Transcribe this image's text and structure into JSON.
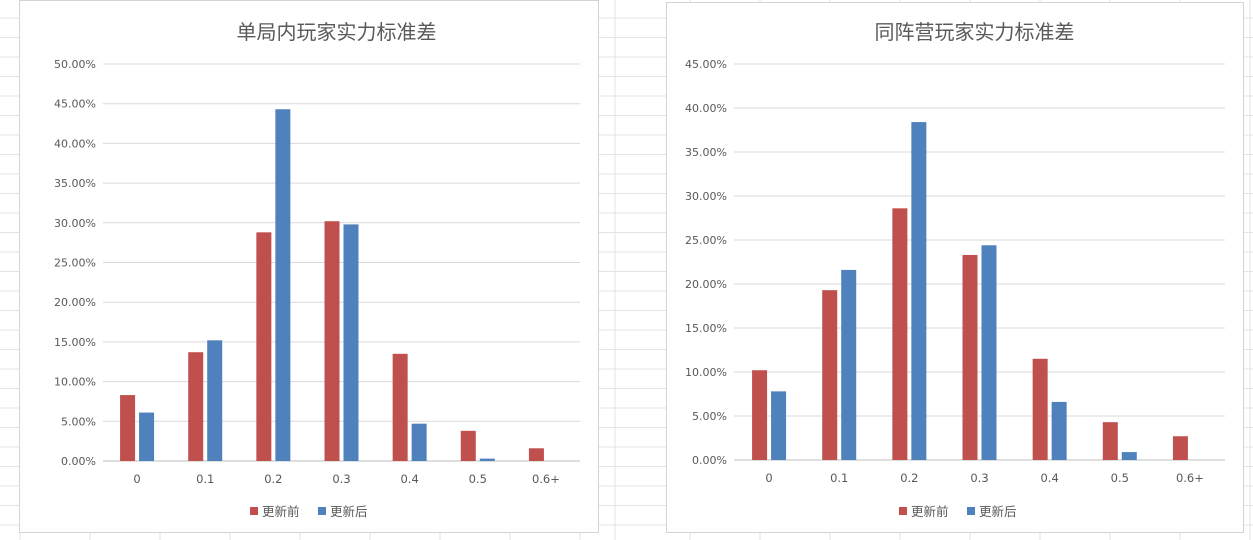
{
  "chart_data": [
    {
      "type": "bar",
      "title": "单局内玩家实力标准差",
      "categories": [
        "0",
        "0.1",
        "0.2",
        "0.3",
        "0.4",
        "0.5",
        "0.6+"
      ],
      "series": [
        {
          "name": "更新前",
          "color": "#c0504d",
          "values": [
            8.3,
            13.7,
            28.8,
            30.2,
            13.5,
            3.8,
            1.6
          ]
        },
        {
          "name": "更新后",
          "color": "#4f81bd",
          "values": [
            6.1,
            15.2,
            44.3,
            29.8,
            4.7,
            0.3,
            0.0
          ]
        }
      ],
      "yticks": [
        "0.00%",
        "5.00%",
        "10.00%",
        "15.00%",
        "20.00%",
        "25.00%",
        "30.00%",
        "35.00%",
        "40.00%",
        "45.00%",
        "50.00%"
      ],
      "ylim": [
        0,
        50
      ],
      "ylabel_format": "percent",
      "grid": true,
      "legend": "bottom-center"
    },
    {
      "type": "bar",
      "title": "同阵营玩家实力标准差",
      "categories": [
        "0",
        "0.1",
        "0.2",
        "0.3",
        "0.4",
        "0.5",
        "0.6+"
      ],
      "series": [
        {
          "name": "更新前",
          "color": "#c0504d",
          "values": [
            10.2,
            19.3,
            28.6,
            23.3,
            11.5,
            4.3,
            2.7
          ]
        },
        {
          "name": "更新后",
          "color": "#4f81bd",
          "values": [
            7.8,
            21.6,
            38.4,
            24.4,
            6.6,
            0.9,
            0.0
          ]
        }
      ],
      "yticks": [
        "0.00%",
        "5.00%",
        "10.00%",
        "15.00%",
        "20.00%",
        "25.00%",
        "30.00%",
        "35.00%",
        "40.00%",
        "45.00%"
      ],
      "ylim": [
        0,
        45
      ],
      "ylabel_format": "percent",
      "grid": true,
      "legend": "bottom-center"
    }
  ]
}
